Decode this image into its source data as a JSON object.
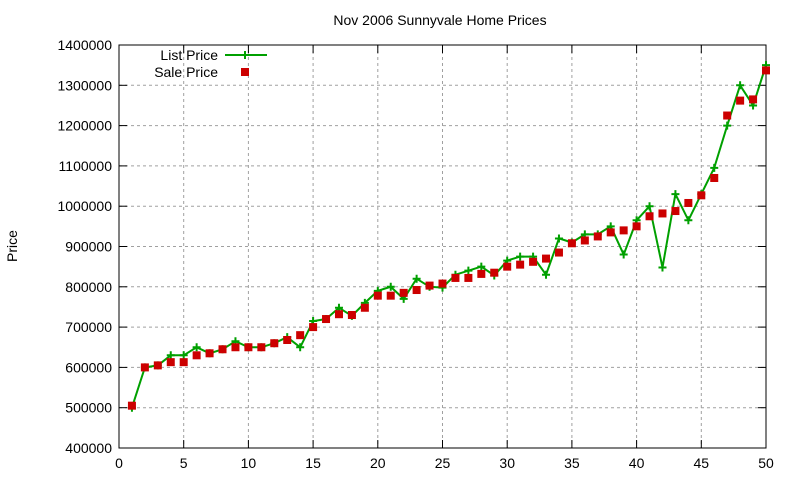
{
  "chart_data": {
    "type": "line",
    "title": "Nov 2006 Sunnyvale Home Prices",
    "xlabel": "",
    "ylabel": "Price",
    "xlim": [
      0,
      50
    ],
    "ylim": [
      400000,
      1400000
    ],
    "xticks": [
      0,
      5,
      10,
      15,
      20,
      25,
      30,
      35,
      40,
      45,
      50
    ],
    "yticks": [
      400000,
      500000,
      600000,
      700000,
      800000,
      900000,
      1000000,
      1100000,
      1200000,
      1300000,
      1400000
    ],
    "grid": true,
    "legend_position": "top-left",
    "x": [
      1,
      2,
      3,
      4,
      5,
      6,
      7,
      8,
      9,
      10,
      11,
      12,
      13,
      14,
      15,
      16,
      17,
      18,
      19,
      20,
      21,
      22,
      23,
      24,
      25,
      26,
      27,
      28,
      29,
      30,
      31,
      32,
      33,
      34,
      35,
      36,
      37,
      38,
      39,
      40,
      41,
      42,
      43,
      44,
      45,
      46,
      47,
      48,
      49,
      50
    ],
    "series": [
      {
        "name": "List Price",
        "style": "linespoints",
        "color": "#00a000",
        "values": [
          500000,
          600000,
          605000,
          630000,
          630000,
          650000,
          635000,
          645000,
          665000,
          650000,
          650000,
          660000,
          675000,
          650000,
          715000,
          720000,
          748000,
          728000,
          760000,
          790000,
          800000,
          770000,
          820000,
          800000,
          798000,
          830000,
          840000,
          850000,
          828000,
          865000,
          875000,
          875000,
          830000,
          920000,
          910000,
          930000,
          930000,
          950000,
          880000,
          965000,
          1000000,
          848000,
          1030000,
          965000,
          1030000,
          1095000,
          1200000,
          1300000,
          1250000,
          1350000
        ]
      },
      {
        "name": "Sale Price",
        "style": "points",
        "color": "#cc0000",
        "values": [
          505000,
          600000,
          605000,
          613000,
          613000,
          630000,
          635000,
          645000,
          650000,
          650000,
          650000,
          660000,
          668000,
          680000,
          700000,
          720000,
          732000,
          730000,
          748000,
          778000,
          778000,
          785000,
          792000,
          803000,
          808000,
          822000,
          822000,
          832000,
          835000,
          850000,
          855000,
          862000,
          870000,
          885000,
          908000,
          915000,
          925000,
          935000,
          940000,
          950000,
          975000,
          982000,
          988000,
          1008000,
          1027000,
          1070000,
          1225000,
          1262000,
          1265000,
          1337000
        ]
      }
    ]
  }
}
